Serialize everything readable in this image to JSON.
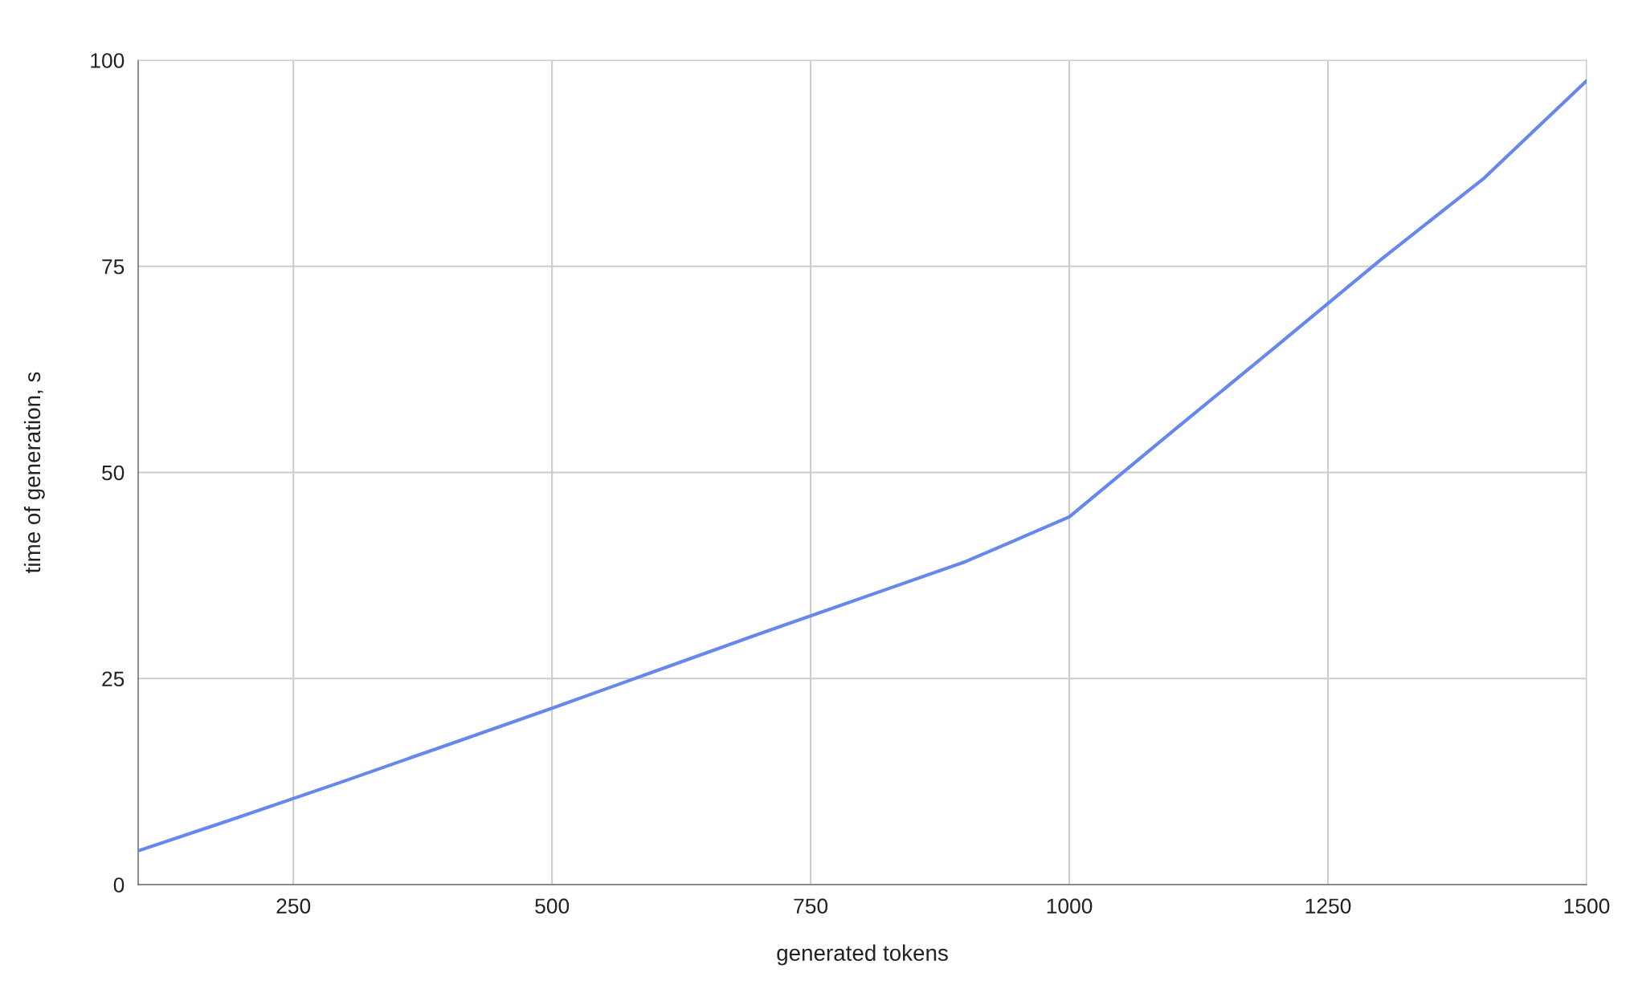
{
  "chart_data": {
    "type": "line",
    "xlabel": "generated tokens",
    "ylabel": "time of generation, s",
    "x": [
      100,
      200,
      300,
      400,
      500,
      600,
      700,
      800,
      900,
      1000,
      1100,
      1200,
      1300,
      1400,
      1500
    ],
    "series": [
      {
        "color": "#6688ee",
        "values": [
          4.1,
          8.3,
          12.6,
          17.0,
          21.4,
          25.9,
          30.4,
          34.8,
          39.2,
          44.6,
          55.0,
          65.3,
          75.7,
          85.6,
          97.5
        ]
      }
    ],
    "xlim": [
      100,
      1500
    ],
    "xticks": [
      250,
      500,
      750,
      1000,
      1250,
      1500
    ],
    "ylim": [
      0,
      100
    ],
    "yticks": [
      0,
      25,
      50,
      75,
      100
    ],
    "grid": true,
    "marker": "none",
    "line_style": "solid",
    "legend": false
  }
}
